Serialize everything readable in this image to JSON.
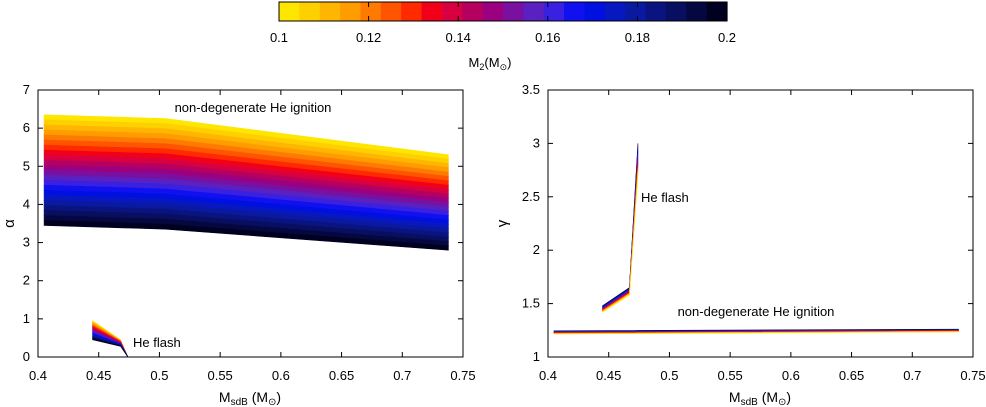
{
  "colorbar": {
    "label": "M",
    "label_sub": "2",
    "label_unit": "(M",
    "label_close": ")",
    "ticks": [
      "0.1",
      "0.12",
      "0.14",
      "0.16",
      "0.18",
      "0.2"
    ],
    "range": [
      0.1,
      0.2
    ],
    "colors": [
      "#ffe600",
      "#ffd000",
      "#ffb600",
      "#ff9c00",
      "#ff7a00",
      "#ff5500",
      "#ff2a00",
      "#f2001a",
      "#d80040",
      "#b60060",
      "#9a0080",
      "#7a10a0",
      "#5a20c0",
      "#3a20e0",
      "#1010f0",
      "#0010e0",
      "#0818c0",
      "#0a1aa0",
      "#0a1480",
      "#080e60",
      "#050840",
      "#000020"
    ]
  },
  "chart_data": [
    {
      "type": "area",
      "ylabel": "α",
      "xlabel_main": "M",
      "xlabel_sub": "sdB",
      "xlabel_unit": " (M",
      "xlabel_close": ")",
      "xlim": [
        0.4,
        0.75
      ],
      "ylim": [
        0,
        7
      ],
      "xticks": [
        "0.4",
        "0.45",
        "0.5",
        "0.55",
        "0.6",
        "0.65",
        "0.7",
        "0.75"
      ],
      "yticks": [
        "0",
        "1",
        "2",
        "3",
        "4",
        "5",
        "6",
        "7"
      ],
      "annotations": [
        "non-degenerate He ignition",
        "He flash"
      ],
      "non_degenerate": {
        "x": [
          0.405,
          0.505,
          0.738
        ],
        "top": [
          6.35,
          6.25,
          5.3
        ],
        "bottom": [
          3.45,
          3.35,
          2.8
        ]
      },
      "he_flash": {
        "x": [
          0.445,
          0.468,
          0.474
        ],
        "top": [
          0.95,
          0.45,
          0.0
        ],
        "bottom": [
          0.45,
          0.28,
          0.0
        ]
      }
    },
    {
      "type": "line",
      "ylabel": "γ",
      "xlabel_main": "M",
      "xlabel_sub": "sdB",
      "xlabel_unit": " (M",
      "xlabel_close": ")",
      "xlim": [
        0.4,
        0.75
      ],
      "ylim": [
        1,
        3.5
      ],
      "xticks": [
        "0.4",
        "0.45",
        "0.5",
        "0.55",
        "0.6",
        "0.65",
        "0.7",
        "0.75"
      ],
      "yticks": [
        "1",
        "1.5",
        "2",
        "2.5",
        "3",
        "3.5"
      ],
      "annotations": [
        "He flash",
        "non-degenerate He ignition"
      ],
      "non_degenerate": {
        "x": [
          0.405,
          0.738
        ],
        "top": [
          1.245,
          1.26
        ],
        "bottom": [
          1.215,
          1.235
        ]
      },
      "he_flash": {
        "x": [
          0.445,
          0.467,
          0.474
        ],
        "top": [
          1.48,
          1.65,
          3.0
        ],
        "bottom": [
          1.42,
          1.58,
          2.7
        ]
      }
    }
  ]
}
